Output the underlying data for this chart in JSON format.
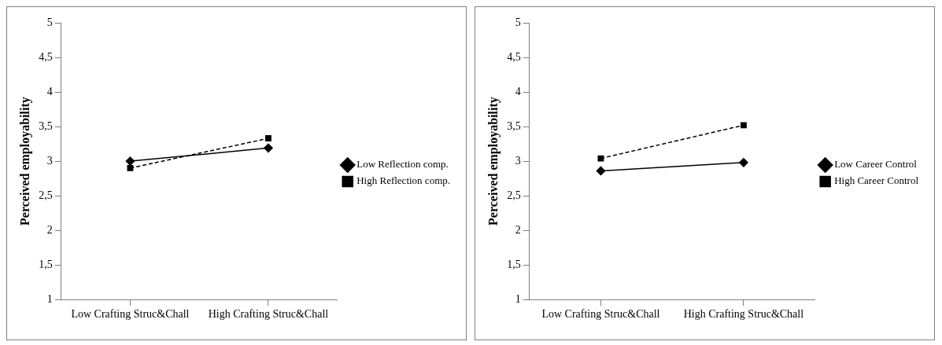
{
  "chart_data": [
    {
      "type": "line",
      "ylabel": "Perceived employability",
      "categories": [
        "Low Crafting Struc&Chall",
        "High Crafting Struc&Chall"
      ],
      "ylim": [
        1,
        5
      ],
      "yticks": [
        1,
        {
          "value": 1.5,
          "label": "1,5"
        },
        2,
        {
          "value": 2.5,
          "label": "2,5"
        },
        3,
        {
          "value": 3.5,
          "label": "3,5"
        },
        4,
        {
          "value": 4.5,
          "label": "4,5"
        },
        5
      ],
      "grid": false,
      "legend": "right",
      "series": [
        {
          "name": "Low Reflection comp.",
          "color": "#000000",
          "values": [
            3.0,
            3.19
          ],
          "marker": "diamond",
          "line_style": "solid"
        },
        {
          "name": "High Reflection comp.",
          "color": "#000000",
          "values": [
            2.9,
            3.33
          ],
          "marker": "square",
          "line_style": "dashed"
        }
      ]
    },
    {
      "type": "line",
      "ylabel": "Perceived employability",
      "categories": [
        "Low Crafting Struc&Chall",
        "High Crafting Struc&Chall"
      ],
      "ylim": [
        1,
        5
      ],
      "yticks": [
        1,
        {
          "value": 1.5,
          "label": "1,5"
        },
        2,
        {
          "value": 2.5,
          "label": "2,5"
        },
        3,
        {
          "value": 3.5,
          "label": "3,5"
        },
        4,
        {
          "value": 4.5,
          "label": "4,5"
        },
        5
      ],
      "grid": false,
      "legend": "right",
      "series": [
        {
          "name": "Low Career Control",
          "color": "#000000",
          "values": [
            2.86,
            2.98
          ],
          "marker": "diamond",
          "line_style": "solid"
        },
        {
          "name": "High Career Control",
          "color": "#000000",
          "values": [
            3.04,
            3.52
          ],
          "marker": "square",
          "line_style": "dashed"
        }
      ]
    }
  ]
}
